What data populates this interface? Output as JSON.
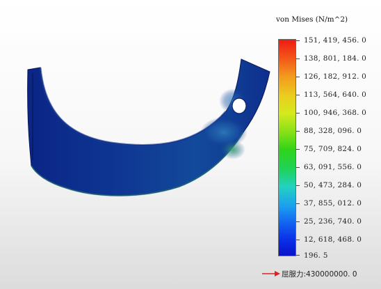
{
  "legend": {
    "title": "von Mises (N/m^2)",
    "labels": [
      "151, 419, 456. 0",
      "138, 801, 184. 0",
      "126, 182, 912. 0",
      "113, 564, 640. 0",
      "100, 946, 368. 0",
      "88, 328, 096. 0",
      "75, 709, 824. 0",
      "63, 091, 556. 0",
      "50, 473, 284. 0",
      "37, 855, 012. 0",
      "25, 236, 740. 0",
      "12, 618, 468. 0",
      "196. 5"
    ],
    "yield_strength": "屈服力:430000000. 0"
  },
  "colors": {
    "max_stress": "#ee1c16",
    "min_stress": "#0a12c8",
    "part_base": "#0d2a8c",
    "yield_arrow": "#e02020"
  }
}
